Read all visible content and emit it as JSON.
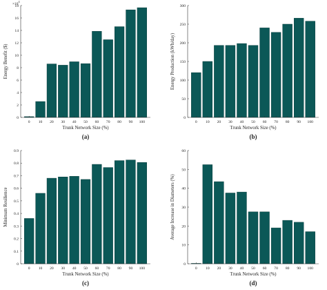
{
  "colors": {
    "bar": "#0b5857",
    "bar_stroke": "#0a3f3e",
    "axis": "#333333"
  },
  "chart_data": [
    {
      "type": "bar",
      "panel_label": "(a)",
      "categories": [
        "0",
        "10",
        "20",
        "30",
        "40",
        "50",
        "60",
        "70",
        "80",
        "90",
        "100"
      ],
      "values": [
        0.12,
        2.55,
        8.6,
        8.4,
        8.95,
        8.65,
        13.85,
        12.5,
        14.6,
        17.3,
        17.65
      ],
      "xlabel": "Trunk Network Size (%)",
      "ylabel": "Energy Benefit ($)",
      "ylim": [
        0,
        18
      ],
      "yticks": [
        "0",
        "2",
        "4",
        "6",
        "8",
        "10",
        "12",
        "14",
        "16",
        "18"
      ],
      "y_multiplier": "×10",
      "y_multiplier_exp": "4",
      "grid": false
    },
    {
      "type": "bar",
      "panel_label": "(b)",
      "categories": [
        "0",
        "10",
        "20",
        "30",
        "40",
        "50",
        "60",
        "70",
        "80",
        "90",
        "100"
      ],
      "values": [
        120,
        150,
        193,
        193,
        198,
        193,
        240,
        228,
        250,
        266,
        258
      ],
      "xlabel": "Trunk Network Size (%)",
      "ylabel": "Energy Production (kWh/day)",
      "ylim": [
        0,
        300
      ],
      "yticks": [
        "0",
        "50",
        "100",
        "150",
        "200",
        "250",
        "300"
      ],
      "grid": false
    },
    {
      "type": "bar",
      "panel_label": "(c)",
      "categories": [
        "0",
        "10",
        "20",
        "30",
        "40",
        "50",
        "60",
        "70",
        "80",
        "90",
        "100"
      ],
      "values": [
        0.36,
        0.56,
        0.68,
        0.69,
        0.695,
        0.67,
        0.79,
        0.765,
        0.82,
        0.825,
        0.805
      ],
      "xlabel": "Trunk Network Size (%)",
      "ylabel": "Minimum Resilience",
      "ylim": [
        0,
        0.9
      ],
      "yticks": [
        "0",
        "0.1",
        "0.2",
        "0.3",
        "0.4",
        "0.5",
        "0.6",
        "0.7",
        "0.8",
        "0.9"
      ],
      "grid": false
    },
    {
      "type": "bar",
      "panel_label": "(d)",
      "categories": [
        "0",
        "10",
        "20",
        "30",
        "40",
        "50",
        "60",
        "70",
        "80",
        "90",
        "100"
      ],
      "values": [
        0.2,
        52.5,
        43.5,
        37.5,
        38,
        27.5,
        27.5,
        19,
        23,
        22,
        17
      ],
      "xlabel": "Trunk Network Size (%)",
      "ylabel": "Average Increase in Diameters (%)",
      "ylim": [
        0,
        60
      ],
      "yticks": [
        "0",
        "10",
        "20",
        "30",
        "40",
        "50",
        "60"
      ],
      "grid": false
    }
  ]
}
